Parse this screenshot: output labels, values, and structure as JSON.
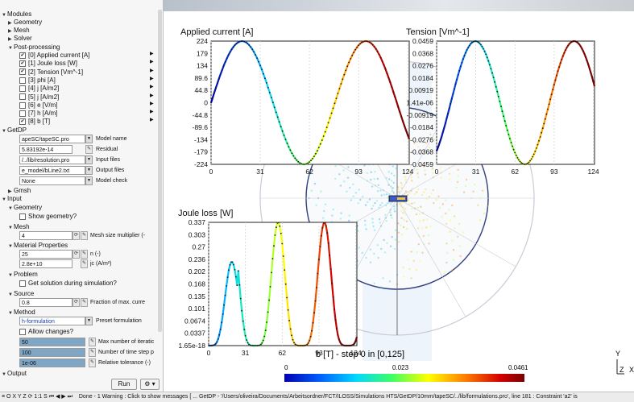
{
  "tree": {
    "modules": "Modules",
    "geometry": "Geometry",
    "mesh": "Mesh",
    "solver": "Solver",
    "postproc": "Post-processing",
    "views": [
      {
        "label": "[0] Applied current [A]",
        "checked": true
      },
      {
        "label": "[1] Joule loss [W]",
        "checked": true
      },
      {
        "label": "[2] Tension [Vm^-1]",
        "checked": true
      },
      {
        "label": "[3] phi [A]",
        "checked": false
      },
      {
        "label": "[4] j [A/m2]",
        "checked": false
      },
      {
        "label": "[5] j [A/m2]",
        "checked": false
      },
      {
        "label": "[6] e [V/m]",
        "checked": false
      },
      {
        "label": "[7] h [A/m]",
        "checked": false
      },
      {
        "label": "[8] b [T]",
        "checked": true
      }
    ],
    "getdp": "GetDP",
    "getdp_rows": [
      {
        "value": "apeSC/tapeSC.pro",
        "label": "Model name"
      },
      {
        "value": "5.83192e-14",
        "label": "Residual"
      },
      {
        "value": "/../lib/resolution.pro",
        "label": "Input files"
      },
      {
        "value": "e_model/bLine2.txt",
        "label": "Output files"
      },
      {
        "value": "None",
        "label": "Model check"
      }
    ],
    "gmsh": "Gmsh",
    "input": "Input",
    "geometry_sub": "Geometry",
    "show_geometry": "Show geometry?",
    "mesh_sub": "Mesh",
    "mesh_value": "4",
    "mesh_label": "Mesh size multiplier (-",
    "material": "Material Properties",
    "n_value": "25",
    "n_label": "n (-)",
    "jc_value": "2.8e+10",
    "jc_label": "jc (A/m²)",
    "problem": "Problem",
    "get_solution": "Get solution during simulation?",
    "source": "Source",
    "source_value": "0.8",
    "source_label": "Fraction of max. curre",
    "method": "Method",
    "formulation_value": "h-formulation",
    "formulation_label": "Preset formulation",
    "allow_changes": "Allow changes?",
    "iter_value": "50",
    "iter_label": "Max number of iteratic",
    "steps_value": "100",
    "steps_label": "Number of time step p",
    "tol_value": "1e-06",
    "tol_label": "Relative tolerance (-)",
    "output": "Output",
    "run_label": "Run",
    "gear_label": "⚙"
  },
  "colors": {
    "accent_field": "#7fa6c4",
    "line_series": "#1a1a1a",
    "scale_colors": [
      "#0000b4",
      "#0060ff",
      "#00d8ff",
      "#40ff60",
      "#ffff00",
      "#ff8000",
      "#d40000",
      "#7a0000"
    ]
  },
  "plots": {
    "applied_current": {
      "title": "Applied current [A]",
      "yticks": [
        "224",
        "179",
        "134",
        "89.6",
        "44.8",
        "0",
        "-44.8",
        "-89.6",
        "-134",
        "-179",
        "-224"
      ],
      "xticks": [
        "0",
        "31",
        "62",
        "93",
        "124"
      ]
    },
    "tension": {
      "title": "Tension [Vm^-1]",
      "yticks": [
        "0.0459",
        "0.0368",
        "0.0276",
        "0.0184",
        "0.00919",
        "1.41e-06",
        "-0.00919",
        "-0.0184",
        "-0.0276",
        "-0.0368",
        "-0.0459"
      ],
      "xticks": [
        "0",
        "31",
        "62",
        "93",
        "124"
      ]
    },
    "joule_loss": {
      "title": "Joule loss [W]",
      "yticks": [
        "0.337",
        "0.303",
        "0.27",
        "0.236",
        "0.202",
        "0.168",
        "0.135",
        "0.101",
        "0.0674",
        "0.0337",
        "1.65e-18"
      ],
      "xticks": [
        "0",
        "31",
        "62",
        "93",
        "124"
      ]
    }
  },
  "scale": {
    "title": "b [T] - step 0 in [0,125]",
    "min": "0",
    "mid": "0.023",
    "max": "0.0461"
  },
  "axes_glyph": {
    "y": "Y",
    "z": "Z",
    "x": "X"
  },
  "status": {
    "icons": "≡ O X Y Z ⟳ 1:1 S ⏮ ◀ ▶ ⏭",
    "message": "Done - 1 Warning : Click to show messages [ ... GetDP - '/Users/oliveira/Documents/Arbeitsordner/FCT/ILOSS/Simulations HTS/GetDP/10mm/tapeSC/../lib/formulations.pro', line 181 : Constraint 'a2' is"
  }
}
